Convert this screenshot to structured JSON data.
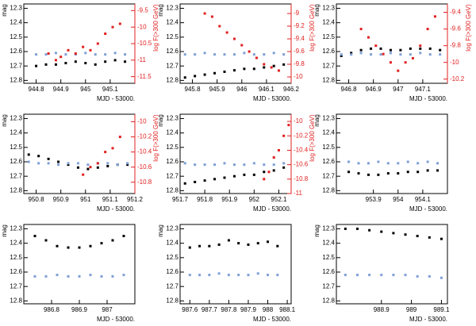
{
  "chart_data": [
    {
      "type": "scatter",
      "xlabel": "MJD - 53000.",
      "ylabel": "mag",
      "y2label": "log F(>300 GeV)",
      "xlim": [
        944.75,
        945.2
      ],
      "xticks": [
        944.8,
        944.9,
        945,
        945.1
      ],
      "ylim": [
        12.82,
        12.27
      ],
      "yticks": [
        12.3,
        12.4,
        12.5,
        12.6,
        12.7,
        12.8
      ],
      "y2lim": [
        -11.7,
        -9.3
      ],
      "y2ticks": [
        -9.5,
        -10,
        -10.5,
        -11,
        -11.5
      ],
      "series": [
        {
          "color": "#000000",
          "x": [
            944.8,
            944.84,
            944.88,
            944.92,
            944.96,
            945.0,
            945.04,
            945.08,
            945.12,
            945.16
          ],
          "values": [
            12.7,
            12.69,
            12.69,
            12.68,
            12.67,
            12.68,
            12.69,
            12.67,
            12.66,
            12.67
          ]
        },
        {
          "color": "#7f9fd6",
          "x": [
            944.8,
            944.84,
            944.88,
            944.92,
            944.96,
            945.0,
            945.04,
            945.08,
            945.12,
            945.16
          ],
          "values": [
            12.62,
            12.62,
            12.61,
            12.62,
            12.62,
            12.61,
            12.62,
            12.62,
            12.61,
            12.62
          ]
        },
        {
          "color": "#e02020",
          "axis": "y2",
          "x": [
            944.85,
            944.88,
            944.9,
            944.93,
            944.96,
            944.99,
            945.02,
            945.05,
            945.08,
            945.11,
            945.14
          ],
          "values": [
            -10.8,
            -11.0,
            -10.9,
            -10.7,
            -10.8,
            -10.6,
            -10.7,
            -10.5,
            -10.2,
            -10.0,
            -9.9
          ]
        }
      ]
    },
    {
      "type": "scatter",
      "xlabel": "MJD - 53000.",
      "ylabel": "mag",
      "y2label": "log F(>300 GeV)",
      "xlim": [
        945.75,
        946.2
      ],
      "xticks": [
        945.8,
        945.9,
        946,
        946.1,
        946.2
      ],
      "ylim": [
        12.82,
        12.27
      ],
      "yticks": [
        12.3,
        12.4,
        12.5,
        12.6,
        12.7,
        12.8
      ],
      "y2lim": [
        -10.1,
        -8.85
      ],
      "y2ticks": [
        -9,
        -9.2,
        -9.4,
        -9.6,
        -9.8,
        -10
      ],
      "series": [
        {
          "color": "#000000",
          "x": [
            945.77,
            945.81,
            945.85,
            945.89,
            945.93,
            945.97,
            946.01,
            946.05,
            946.09,
            946.13,
            946.17
          ],
          "values": [
            12.78,
            12.77,
            12.76,
            12.75,
            12.74,
            12.73,
            12.72,
            12.72,
            12.71,
            12.7,
            12.69
          ]
        },
        {
          "color": "#7f9fd6",
          "x": [
            945.77,
            945.81,
            945.85,
            945.89,
            945.93,
            945.97,
            946.01,
            946.05,
            946.09,
            946.13,
            946.17
          ],
          "values": [
            12.62,
            12.62,
            12.61,
            12.62,
            12.62,
            12.62,
            12.61,
            12.62,
            12.62,
            12.61,
            12.62
          ]
        },
        {
          "color": "#e02020",
          "axis": "y2",
          "x": [
            945.85,
            945.88,
            945.91,
            945.94,
            945.97,
            946.0,
            946.03,
            946.06,
            946.09,
            946.12,
            946.15
          ],
          "values": [
            -9.0,
            -9.05,
            -9.2,
            -9.3,
            -9.4,
            -9.5,
            -9.6,
            -9.7,
            -9.8,
            -9.85,
            -9.9
          ]
        }
      ]
    },
    {
      "type": "scatter",
      "xlabel": "MJD - 53000.",
      "ylabel": "mag",
      "y2label": "log F(>300 GeV)",
      "xlim": [
        946.75,
        947.2
      ],
      "xticks": [
        946.8,
        946.9,
        947,
        947.1
      ],
      "ylim": [
        12.82,
        12.27
      ],
      "yticks": [
        12.3,
        12.4,
        12.5,
        12.6,
        12.7,
        12.8
      ],
      "y2lim": [
        -10.25,
        -9.3
      ],
      "y2ticks": [
        -9.4,
        -9.6,
        -9.8,
        -10,
        -10.2
      ],
      "series": [
        {
          "color": "#000000",
          "x": [
            946.77,
            946.81,
            946.85,
            946.89,
            946.93,
            946.97,
            947.01,
            947.05,
            947.09,
            947.13,
            947.17
          ],
          "values": [
            12.63,
            12.61,
            12.59,
            12.58,
            12.58,
            12.59,
            12.59,
            12.58,
            12.58,
            12.58,
            12.59
          ]
        },
        {
          "color": "#7f9fd6",
          "x": [
            946.77,
            946.81,
            946.85,
            946.89,
            946.93,
            946.97,
            947.01,
            947.05,
            947.09,
            947.13,
            947.17
          ],
          "values": [
            12.62,
            12.62,
            12.61,
            12.62,
            12.62,
            12.61,
            12.62,
            12.62,
            12.61,
            12.62,
            12.62
          ]
        },
        {
          "color": "#e02020",
          "axis": "y2",
          "x": [
            946.85,
            946.88,
            946.91,
            946.94,
            946.97,
            947.0,
            947.03,
            947.06,
            947.09,
            947.12,
            947.15
          ],
          "values": [
            -9.6,
            -9.7,
            -9.8,
            -9.9,
            -10.0,
            -10.1,
            -10.0,
            -9.95,
            -9.8,
            -9.6,
            -9.45
          ]
        }
      ]
    },
    {
      "type": "scatter",
      "xlabel": "MJD - 53000.",
      "ylabel": "mag",
      "y2label": "log F(>300 GeV)",
      "xlim": [
        950.75,
        951.2
      ],
      "xticks": [
        950.8,
        950.9,
        951,
        951.1,
        951.2
      ],
      "ylim": [
        12.82,
        12.27
      ],
      "yticks": [
        12.3,
        12.4,
        12.5,
        12.6,
        12.7,
        12.8
      ],
      "y2lim": [
        -10.95,
        -9.9
      ],
      "y2ticks": [
        -10,
        -10.2,
        -10.4,
        -10.6,
        -10.8
      ],
      "series": [
        {
          "color": "#000000",
          "x": [
            950.77,
            950.81,
            950.85,
            950.89,
            950.93,
            950.97,
            951.01,
            951.05,
            951.09,
            951.13,
            951.17
          ],
          "values": [
            12.55,
            12.56,
            12.58,
            12.6,
            12.62,
            12.64,
            12.65,
            12.64,
            12.63,
            12.62,
            12.62
          ]
        },
        {
          "color": "#7f9fd6",
          "x": [
            950.77,
            950.81,
            950.85,
            950.89,
            950.93,
            950.97,
            951.01,
            951.05,
            951.09,
            951.13,
            951.17
          ],
          "values": [
            12.6,
            12.61,
            12.61,
            12.62,
            12.61,
            12.61,
            12.62,
            12.61,
            12.61,
            12.62,
            12.61
          ]
        },
        {
          "color": "#e02020",
          "axis": "y2",
          "x": [
            950.99,
            951.02,
            951.05,
            951.08,
            951.11,
            951.14
          ],
          "values": [
            -10.7,
            -10.6,
            -10.55,
            -10.4,
            -10.35,
            -10.2
          ]
        }
      ]
    },
    {
      "type": "scatter",
      "xlabel": "MJD - 53000.",
      "ylabel": "mag",
      "y2label": "log F(>300 GeV)",
      "xlim": [
        951.7,
        952.15
      ],
      "xticks": [
        951.7,
        951.8,
        951.9,
        952,
        952.1
      ],
      "ylim": [
        12.82,
        12.27
      ],
      "yticks": [
        12.3,
        12.4,
        12.5,
        12.6,
        12.7,
        12.8
      ],
      "y2lim": [
        -11,
        -9.9
      ],
      "y2ticks": [
        -10,
        -10.2,
        -10.4,
        -10.6,
        -10.8,
        -11
      ],
      "series": [
        {
          "color": "#000000",
          "x": [
            951.72,
            951.76,
            951.8,
            951.84,
            951.88,
            951.92,
            951.96,
            952.0,
            952.04,
            952.08,
            952.12
          ],
          "values": [
            12.75,
            12.74,
            12.73,
            12.72,
            12.71,
            12.7,
            12.69,
            12.69,
            12.67,
            12.66,
            12.64
          ]
        },
        {
          "color": "#7f9fd6",
          "x": [
            951.72,
            951.76,
            951.8,
            951.84,
            951.88,
            951.92,
            951.96,
            952.0,
            952.04,
            952.08,
            952.12
          ],
          "values": [
            12.61,
            12.62,
            12.62,
            12.62,
            12.61,
            12.62,
            12.62,
            12.61,
            12.62,
            12.62,
            12.61
          ]
        },
        {
          "color": "#e02020",
          "axis": "y2",
          "x": [
            952.04,
            952.06,
            952.08,
            952.1,
            952.12,
            952.14
          ],
          "values": [
            -10.8,
            -10.7,
            -10.5,
            -10.4,
            -10.2,
            -10.05
          ]
        }
      ]
    },
    {
      "type": "scatter",
      "xlabel": "MJD - 53000.",
      "ylabel": "mag",
      "xlim": [
        953.75,
        954.2
      ],
      "xticks": [
        953.9,
        954,
        954.1
      ],
      "ylim": [
        12.82,
        12.27
      ],
      "yticks": [
        12.3,
        12.4,
        12.5,
        12.6,
        12.7,
        12.8
      ],
      "series": [
        {
          "color": "#000000",
          "x": [
            953.8,
            953.84,
            953.88,
            953.92,
            953.96,
            954.0,
            954.04,
            954.08,
            954.12,
            954.16
          ],
          "values": [
            12.67,
            12.68,
            12.69,
            12.69,
            12.68,
            12.68,
            12.67,
            12.67,
            12.66,
            12.66
          ]
        },
        {
          "color": "#7f9fd6",
          "x": [
            953.8,
            953.84,
            953.88,
            953.92,
            953.96,
            954.0,
            954.04,
            954.08,
            954.12,
            954.16
          ],
          "values": [
            12.6,
            12.61,
            12.61,
            12.6,
            12.61,
            12.61,
            12.6,
            12.61,
            12.6,
            12.61
          ]
        }
      ]
    },
    {
      "type": "scatter",
      "xlabel": "MJD - 53000.",
      "ylabel": "mag",
      "xlim": [
        986.7,
        987.1
      ],
      "xticks": [
        986.8,
        986.9,
        987
      ],
      "ylim": [
        12.82,
        12.27
      ],
      "yticks": [
        12.3,
        12.4,
        12.5,
        12.6,
        12.7,
        12.8
      ],
      "series": [
        {
          "color": "#000000",
          "x": [
            986.74,
            986.78,
            986.82,
            986.86,
            986.9,
            986.94,
            986.98,
            987.02,
            987.06
          ],
          "values": [
            12.35,
            12.38,
            12.42,
            12.43,
            12.43,
            12.42,
            12.4,
            12.38,
            12.35
          ]
        },
        {
          "color": "#7f9fd6",
          "x": [
            986.74,
            986.78,
            986.82,
            986.86,
            986.9,
            986.94,
            986.98,
            987.02,
            987.06
          ],
          "values": [
            12.63,
            12.63,
            12.62,
            12.63,
            12.63,
            12.62,
            12.63,
            12.63,
            12.62
          ]
        }
      ]
    },
    {
      "type": "scatter",
      "xlabel": "MJD - 53000.",
      "ylabel": "mag",
      "xlim": [
        987.55,
        988.12
      ],
      "xticks": [
        987.6,
        987.7,
        987.8,
        987.9,
        988,
        988.1
      ],
      "ylim": [
        12.82,
        12.27
      ],
      "yticks": [
        12.3,
        12.4,
        12.5,
        12.6,
        12.7,
        12.8
      ],
      "series": [
        {
          "color": "#000000",
          "x": [
            987.6,
            987.65,
            987.7,
            987.75,
            987.8,
            987.85,
            987.9,
            987.95,
            988.0,
            988.05
          ],
          "values": [
            12.43,
            12.42,
            12.42,
            12.41,
            12.38,
            12.4,
            12.41,
            12.4,
            12.39,
            12.42
          ]
        },
        {
          "color": "#7f9fd6",
          "x": [
            987.6,
            987.65,
            987.7,
            987.75,
            987.8,
            987.85,
            987.9,
            987.95,
            988.0,
            988.05
          ],
          "values": [
            12.62,
            12.62,
            12.62,
            12.61,
            12.62,
            12.62,
            12.62,
            12.61,
            12.62,
            12.62
          ]
        }
      ]
    },
    {
      "type": "scatter",
      "xlabel": "MJD - 53000.",
      "ylabel": "mag",
      "xlim": [
        988.75,
        989.12
      ],
      "xticks": [
        988.9,
        989,
        989.1
      ],
      "ylim": [
        12.82,
        12.27
      ],
      "yticks": [
        12.3,
        12.4,
        12.5,
        12.6,
        12.7,
        12.8
      ],
      "series": [
        {
          "color": "#000000",
          "x": [
            988.78,
            988.82,
            988.86,
            988.9,
            988.94,
            988.98,
            989.02,
            989.06,
            989.1
          ],
          "values": [
            12.3,
            12.3,
            12.31,
            12.32,
            12.33,
            12.34,
            12.35,
            12.36,
            12.37
          ]
        },
        {
          "color": "#7f9fd6",
          "x": [
            988.78,
            988.82,
            988.86,
            988.9,
            988.94,
            988.98,
            989.02,
            989.06,
            989.1
          ],
          "values": [
            12.62,
            12.62,
            12.62,
            12.62,
            12.62,
            12.62,
            12.63,
            12.63,
            12.64
          ]
        }
      ]
    }
  ]
}
